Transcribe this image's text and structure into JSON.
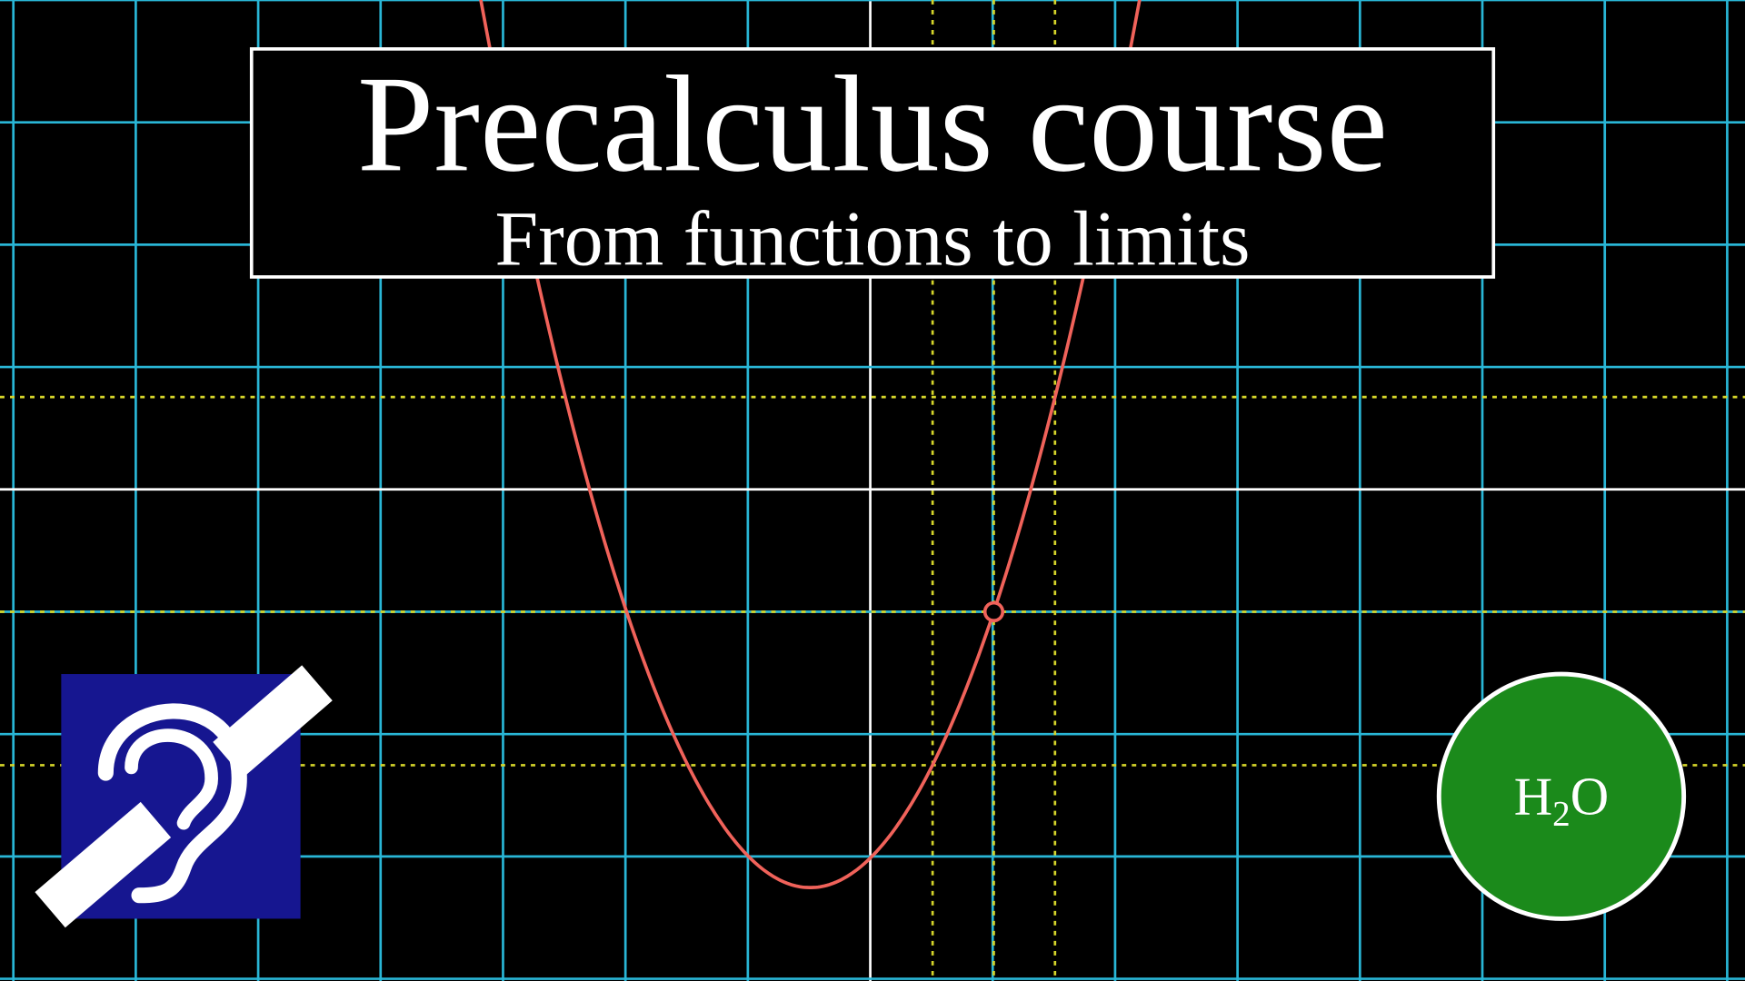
{
  "header": {
    "title": "Precalculus course",
    "subtitle": "From functions to limits"
  },
  "badge": {
    "text": "H",
    "subscript": "2",
    "text_after": "O"
  }
}
